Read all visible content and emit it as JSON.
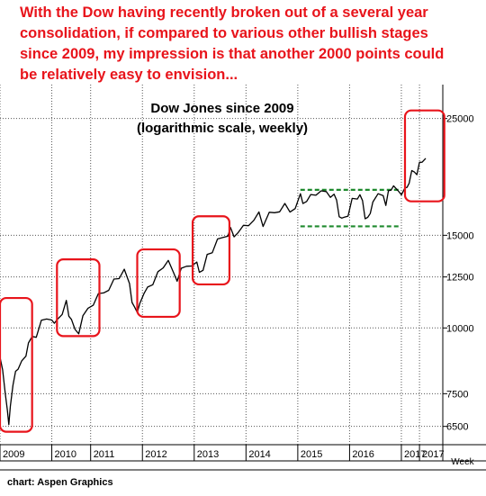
{
  "headline": "With the Dow having recently broken out of a several year\nconsolidation, if compared to various other bullish stages\nsince 2009, my impression is that another 2000 points could\nbe relatively easy to envision...",
  "credit": "chart: Aspen Graphics",
  "chart_data": {
    "type": "line",
    "title": "Dow Jones since 2009",
    "subtitle": "(logarithmic scale, weekly)",
    "y_scale": "log",
    "ylim": [
      6000,
      29000
    ],
    "xlim": [
      2009.0,
      2017.55
    ],
    "y_ticks": [
      6500,
      7500,
      10000,
      12500,
      15000,
      25000
    ],
    "y_tick_labels": [
      "6500",
      "7500",
      "10000",
      "12500",
      "15000",
      "25000"
    ],
    "x_ticks": [
      "2009",
      "2010",
      "2011",
      "2012",
      "2013",
      "2014",
      "2015",
      "2016",
      "2017",
      "2017"
    ],
    "x_tick_positions": [
      2009.0,
      2010.0,
      2010.75,
      2011.75,
      2012.75,
      2013.75,
      2014.75,
      2015.75,
      2016.75,
      2017.1
    ],
    "x_unit_label": "Week",
    "grid": true,
    "line_color": "#000000",
    "annotation_color": "#e8141b",
    "consolidation_color": "#1f8a2e",
    "series": [
      {
        "x": [
          2009.0,
          2009.05,
          2009.1,
          2009.14,
          2009.17,
          2009.2,
          2009.25,
          2009.3,
          2009.35,
          2009.42,
          2009.5,
          2009.55,
          2009.62,
          2009.7,
          2009.8,
          2009.9,
          2010.0,
          2010.05,
          2010.1,
          2010.2,
          2010.28,
          2010.33,
          2010.38,
          2010.45,
          2010.52,
          2010.6,
          2010.7,
          2010.8,
          2010.9,
          2011.0,
          2011.1,
          2011.2,
          2011.3,
          2011.4,
          2011.5,
          2011.55,
          2011.6,
          2011.65,
          2011.7,
          2011.78,
          2011.85,
          2011.95,
          2012.05,
          2012.15,
          2012.25,
          2012.35,
          2012.42,
          2012.5,
          2012.6,
          2012.7,
          2012.8,
          2012.85,
          2012.92,
          2013.0,
          2013.1,
          2013.2,
          2013.3,
          2013.4,
          2013.45,
          2013.52,
          2013.6,
          2013.7,
          2013.8,
          2013.9,
          2014.0,
          2014.08,
          2014.2,
          2014.3,
          2014.4,
          2014.5,
          2014.6,
          2014.7,
          2014.8,
          2014.85,
          2014.92,
          2015.0,
          2015.1,
          2015.2,
          2015.3,
          2015.38,
          2015.45,
          2015.5,
          2015.55,
          2015.6,
          2015.65,
          2015.72,
          2015.8,
          2015.9,
          2015.95,
          2016.0,
          2016.05,
          2016.1,
          2016.15,
          2016.2,
          2016.3,
          2016.4,
          2016.45,
          2016.5,
          2016.55,
          2016.6,
          2016.68,
          2016.75,
          2016.82,
          2016.86,
          2016.9,
          2016.95,
          2017.0,
          2017.05,
          2017.1,
          2017.15,
          2017.22
        ],
        "y": [
          8800,
          8300,
          7600,
          6900,
          6550,
          7200,
          7700,
          8300,
          8500,
          8600,
          8900,
          9200,
          9600,
          9700,
          10200,
          10400,
          10500,
          10100,
          10400,
          10800,
          11200,
          10600,
          10200,
          9900,
          9850,
          10400,
          10900,
          11200,
          11500,
          11700,
          12000,
          12300,
          12500,
          12700,
          12100,
          11300,
          10800,
          10700,
          11300,
          11500,
          12000,
          12300,
          12700,
          13100,
          13200,
          12700,
          12400,
          12800,
          13100,
          13300,
          13200,
          12800,
          13100,
          13700,
          14000,
          14500,
          14800,
          15100,
          15300,
          14900,
          15400,
          15500,
          15700,
          16300,
          16500,
          15700,
          16300,
          16500,
          16800,
          17000,
          16600,
          17100,
          17800,
          17300,
          17700,
          17800,
          18000,
          17900,
          18100,
          17900,
          17700,
          17500,
          16500,
          16000,
          16300,
          16600,
          17500,
          17700,
          17600,
          17400,
          16300,
          16000,
          16500,
          17600,
          17800,
          17900,
          17400,
          18100,
          18400,
          18300,
          18200,
          18100,
          18200,
          18500,
          19100,
          19700,
          19850,
          19900,
          20500,
          20800,
          21000
        ]
      }
    ],
    "annotations": [
      {
        "type": "rounded-rect",
        "x0": 2009.0,
        "x1": 2009.62,
        "y0": 6350,
        "y1": 11400
      },
      {
        "type": "rounded-rect",
        "x0": 2010.1,
        "x1": 2010.92,
        "y0": 9650,
        "y1": 13500
      },
      {
        "type": "rounded-rect",
        "x0": 2011.65,
        "x1": 2012.47,
        "y0": 10500,
        "y1": 14100
      },
      {
        "type": "rounded-rect",
        "x0": 2012.72,
        "x1": 2013.43,
        "y0": 12100,
        "y1": 16300
      },
      {
        "type": "rounded-rect",
        "x0": 2016.82,
        "x1": 2017.58,
        "y0": 17400,
        "y1": 25900
      },
      {
        "type": "dashed-band",
        "x0": 2014.8,
        "x1": 2016.7,
        "y_low": 15600,
        "y_high": 18300
      }
    ]
  }
}
